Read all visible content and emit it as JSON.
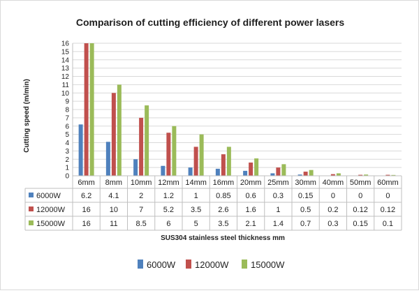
{
  "chart_data": {
    "type": "bar",
    "title": "Comparison of cutting efficiency of different power lasers",
    "xlabel": "SUS304 stainless steel thickness mm",
    "ylabel": "Cutting speed (m/min)",
    "ylim": [
      0,
      16
    ],
    "yticks": [
      0,
      1,
      2,
      3,
      4,
      5,
      6,
      7,
      8,
      9,
      10,
      11,
      12,
      13,
      14,
      15,
      16
    ],
    "grid": true,
    "legend_position": "bottom",
    "categories": [
      "6mm",
      "8mm",
      "10mm",
      "12mm",
      "14mm",
      "16mm",
      "20mm",
      "25mm",
      "30mm",
      "40mm",
      "50mm",
      "60mm"
    ],
    "series": [
      {
        "name": "6000W",
        "color": "#4f81bd",
        "values": [
          6.2,
          4.1,
          2,
          1.2,
          1,
          0.85,
          0.6,
          0.3,
          0.15,
          0,
          0,
          0
        ]
      },
      {
        "name": "12000W",
        "color": "#c0504d",
        "values": [
          16,
          10,
          7,
          5.2,
          3.5,
          2.6,
          1.6,
          1,
          0.5,
          0.2,
          0.12,
          0.12
        ]
      },
      {
        "name": "15000W",
        "color": "#9bbb59",
        "values": [
          16,
          11,
          8.5,
          6,
          5,
          3.5,
          2.1,
          1.4,
          0.7,
          0.3,
          0.15,
          0.1
        ]
      }
    ]
  }
}
